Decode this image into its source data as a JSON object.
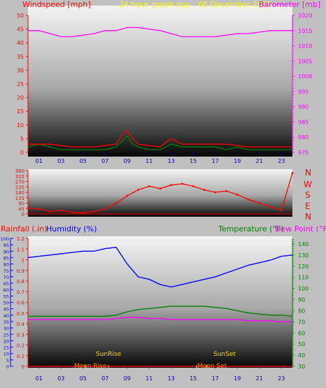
{
  "header": {
    "windspeed_label": "Windspeed [mph]",
    "graph_title": "24 hour graph day : 08 December 2015",
    "barometer_label": "Barometer [mb]"
  },
  "direction_labels": [
    "N",
    "W",
    "S",
    "E",
    "N"
  ],
  "bottom_labels": {
    "rainfall": "Rainfall (.in)",
    "humidity": "Humidity (%)",
    "temperature": "Temperature (°F)",
    "dewpoint": "Dew Point (°F)"
  },
  "events": {
    "sunrise": "SunRise",
    "sunset": "SunSet",
    "moonrise": "Moon Rise",
    "moonset": "Moon Set"
  },
  "hour_ticks": [
    "01",
    "03",
    "05",
    "07",
    "09",
    "11",
    "13",
    "15",
    "17",
    "19",
    "21",
    "23"
  ],
  "colors": {
    "wind_axis": "#ff0000",
    "barometer": "#ff00ff",
    "title": "#ffff00",
    "humidity": "#0000ff",
    "temperature": "#008000",
    "dewpoint": "#ff00ff",
    "rain": "#ff0000",
    "sun": "#ffd700",
    "moon": "#ff8c00"
  },
  "chart_data": [
    {
      "type": "line",
      "title": "24 hour graph day : 08 December 2015",
      "xlabel": "",
      "ylabel": "Windspeed [mph]",
      "ylabel_right": "Barometer [mb]",
      "xlim": [
        0,
        24
      ],
      "ylim": [
        0,
        50
      ],
      "ylim_right": [
        975,
        1020
      ],
      "yticks": [
        0,
        5,
        10,
        15,
        20,
        25,
        30,
        35,
        40,
        45,
        50
      ],
      "yticks_right": [
        975,
        980,
        985,
        990,
        995,
        1000,
        1005,
        1010,
        1015,
        1020
      ],
      "series": [
        {
          "name": "Barometer [mb]",
          "axis": "right",
          "x": [
            0,
            1,
            2,
            3,
            4,
            5,
            6,
            7,
            8,
            9,
            10,
            11,
            12,
            13,
            14,
            15,
            16,
            17,
            18,
            19,
            20,
            21,
            22,
            23,
            24
          ],
          "values": [
            1015,
            1015,
            1014,
            1013,
            1013,
            1013.5,
            1014,
            1015,
            1015,
            1016,
            1016,
            1015.5,
            1015,
            1014,
            1013,
            1013,
            1013,
            1013,
            1013.5,
            1014,
            1014,
            1014.5,
            1015,
            1015,
            1015
          ]
        },
        {
          "name": "Windspeed [mph]",
          "axis": "left",
          "x": [
            0,
            1,
            2,
            3,
            4,
            5,
            6,
            7,
            8,
            8.5,
            9,
            9.5,
            10,
            11,
            12,
            13,
            14,
            15,
            16,
            17,
            18,
            19,
            20,
            21,
            22,
            23,
            24
          ],
          "values": [
            2,
            3,
            2,
            1,
            1,
            1,
            1,
            1,
            2,
            4,
            6,
            3,
            2,
            1,
            1,
            3,
            2,
            2,
            2,
            2,
            1,
            2,
            1,
            1,
            1,
            1,
            1
          ]
        },
        {
          "name": "Gust",
          "axis": "left",
          "x": [
            0,
            2,
            4,
            6,
            8,
            8.5,
            9,
            9.5,
            10,
            12,
            13,
            14,
            16,
            18,
            20,
            22,
            24
          ],
          "values": [
            3,
            3,
            2,
            2,
            3,
            6,
            8,
            5,
            3,
            2,
            5,
            3,
            3,
            3,
            2,
            2,
            2
          ]
        }
      ]
    },
    {
      "type": "scatter",
      "ylabel_right": "N W S E N",
      "xlim": [
        0,
        24
      ],
      "ylim": [
        0,
        360
      ],
      "yticks": [
        0,
        45,
        90,
        135,
        180,
        225,
        270,
        315,
        360
      ],
      "series": [
        {
          "name": "Wind direction",
          "x": [
            0,
            1,
            2,
            3,
            4,
            5,
            6,
            7,
            8,
            9,
            10,
            11,
            12,
            13,
            14,
            15,
            16,
            17,
            18,
            19,
            20,
            21,
            22,
            23,
            24
          ],
          "values": [
            50,
            40,
            20,
            30,
            15,
            10,
            20,
            40,
            90,
            150,
            200,
            230,
            210,
            240,
            250,
            230,
            200,
            180,
            190,
            160,
            120,
            90,
            60,
            30,
            340
          ]
        }
      ]
    },
    {
      "type": "line",
      "ylabel": "Rainfall (.in)",
      "ylabel_2": "Humidity (%)",
      "ylabel_right": "Temperature (°F)",
      "ylabel_right_2": "Dew Point (°F)",
      "xlim": [
        0,
        24
      ],
      "ylim_rain": [
        0,
        1.2
      ],
      "ylim_humidity": [
        0,
        100
      ],
      "ylim_right": [
        30,
        145
      ],
      "yticks_rain": [
        0,
        0.1,
        0.2,
        0.3,
        0.4,
        0.5,
        0.6,
        0.7,
        0.8,
        0.9,
        1,
        1.1,
        1.2
      ],
      "yticks_humidity": [
        0,
        5,
        10,
        15,
        20,
        25,
        30,
        35,
        40,
        45,
        50,
        55,
        60,
        65,
        70,
        75,
        80,
        85,
        90,
        95,
        100
      ],
      "yticks_right": [
        30,
        40,
        50,
        60,
        70,
        80,
        90,
        100,
        110,
        120,
        130,
        140
      ],
      "series": [
        {
          "name": "Humidity (%)",
          "axis": "humidity",
          "x": [
            0,
            1,
            2,
            3,
            4,
            5,
            6,
            7,
            8,
            9,
            10,
            11,
            12,
            13,
            14,
            15,
            16,
            17,
            18,
            19,
            20,
            21,
            22,
            23,
            24
          ],
          "values": [
            85,
            86,
            87,
            88,
            89,
            90,
            90,
            92,
            93,
            80,
            70,
            68,
            64,
            62,
            64,
            66,
            68,
            70,
            73,
            76,
            79,
            81,
            83,
            86,
            87
          ]
        },
        {
          "name": "Temperature (°F)",
          "axis": "right",
          "x": [
            0,
            1,
            2,
            3,
            4,
            5,
            6,
            7,
            8,
            9,
            10,
            11,
            12,
            13,
            14,
            15,
            16,
            17,
            18,
            19,
            20,
            21,
            22,
            23,
            24
          ],
          "values": [
            75,
            75,
            75,
            75,
            75,
            75,
            75,
            75,
            76,
            79,
            81,
            82,
            83,
            84,
            84,
            84,
            84,
            83,
            82,
            80,
            78,
            77,
            76,
            76,
            75
          ]
        },
        {
          "name": "Dew Point (°F)",
          "axis": "right",
          "x": [
            0,
            1,
            2,
            3,
            4,
            5,
            6,
            7,
            8,
            9,
            10,
            11,
            12,
            13,
            14,
            15,
            16,
            17,
            18,
            19,
            20,
            21,
            22,
            23,
            24
          ],
          "values": [
            72,
            72,
            72,
            72,
            72,
            72,
            72,
            72,
            73,
            74,
            74,
            73,
            73,
            72,
            72,
            72,
            72,
            72,
            72,
            72,
            71,
            71,
            71,
            70,
            70
          ]
        },
        {
          "name": "Rainfall (.in)",
          "axis": "rain",
          "x": [
            0,
            24
          ],
          "values": [
            0,
            0
          ]
        }
      ],
      "events": [
        {
          "label": "SunRise",
          "x": 7.3
        },
        {
          "label": "SunSet",
          "x": 16.2
        },
        {
          "label": "Moon Rise",
          "x": 5.2
        },
        {
          "label": "Moon Set",
          "x": 15.3
        }
      ]
    }
  ]
}
